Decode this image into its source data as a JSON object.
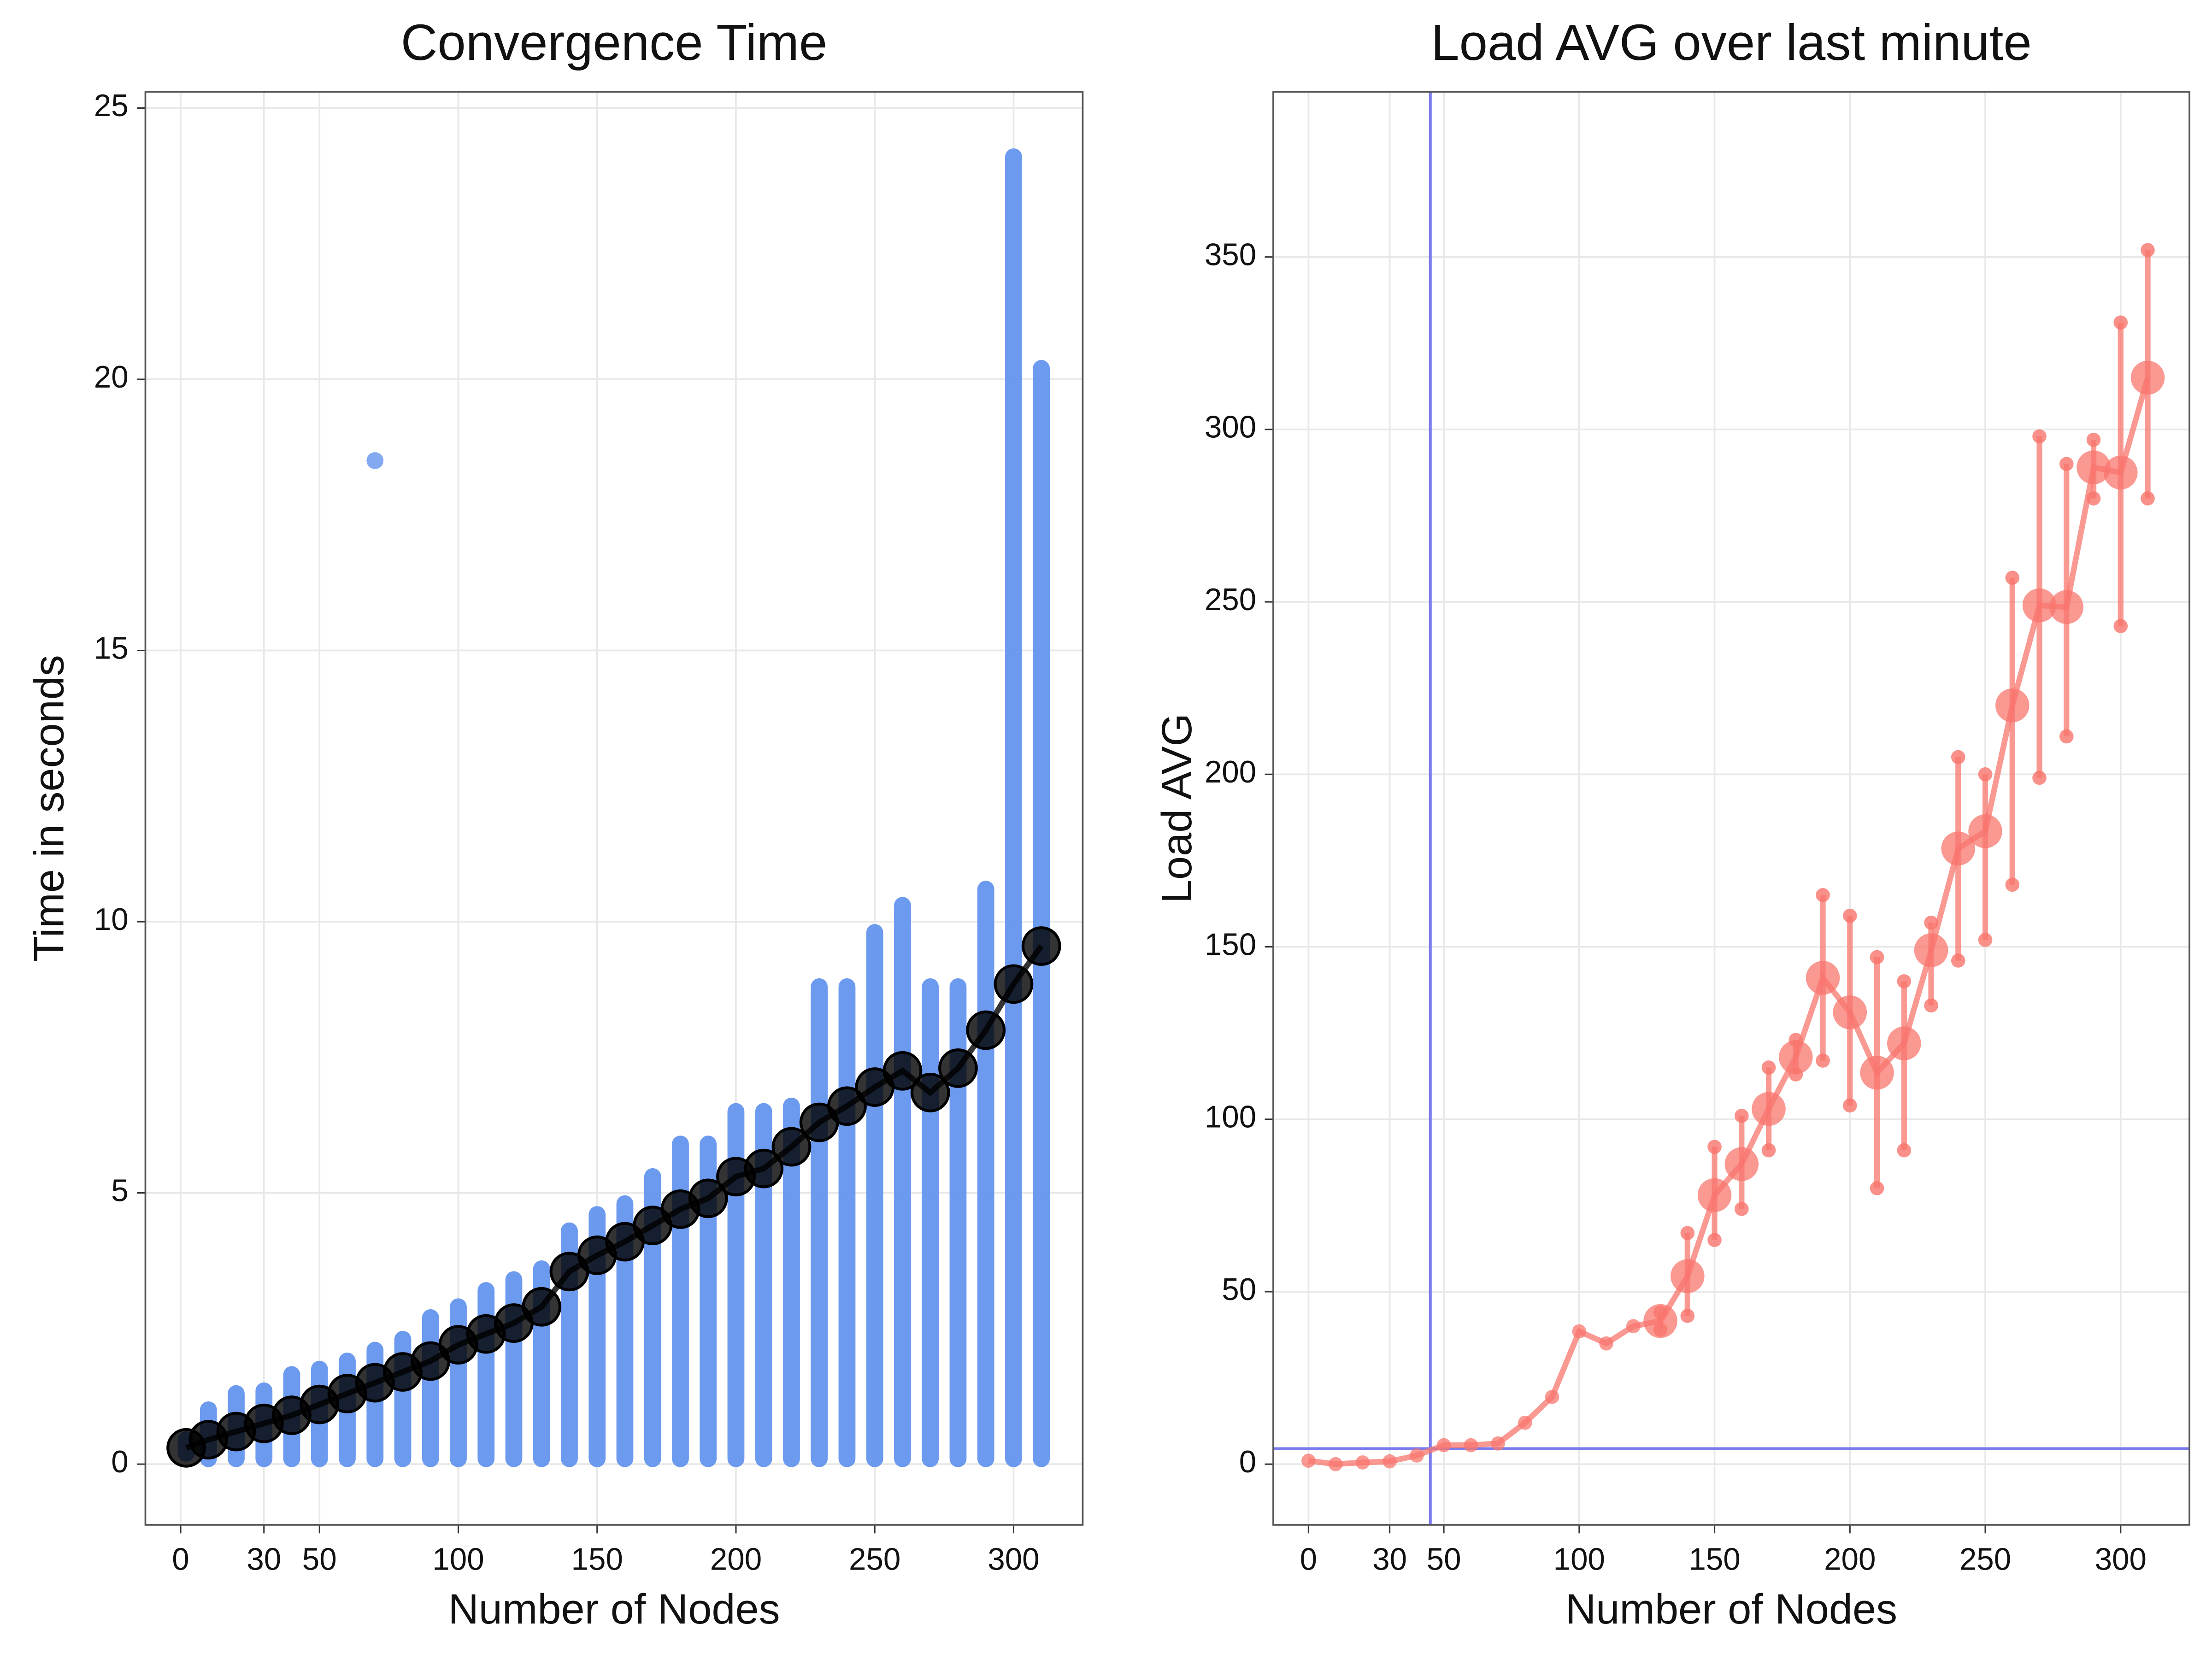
{
  "chart_data": [
    {
      "type": "strip",
      "title": "Convergence Time",
      "xlabel": "Number of Nodes",
      "ylabel": "Time in seconds",
      "x": [
        2,
        10,
        20,
        30,
        40,
        50,
        60,
        70,
        80,
        90,
        100,
        110,
        120,
        130,
        140,
        150,
        160,
        170,
        180,
        190,
        200,
        210,
        220,
        230,
        240,
        250,
        260,
        270,
        280,
        290,
        300,
        310
      ],
      "low": [
        0.2,
        0.1,
        0.1,
        0.1,
        0.1,
        0.1,
        0.1,
        0.1,
        0.1,
        0.1,
        0.1,
        0.1,
        0.1,
        0.1,
        0.1,
        0.1,
        0.1,
        0.1,
        0.1,
        0.1,
        0.1,
        0.1,
        0.1,
        0.1,
        0.1,
        0.1,
        0.1,
        0.1,
        0.1,
        0.1,
        0.1,
        0.1
      ],
      "high": [
        0.45,
        1.0,
        1.3,
        1.35,
        1.65,
        1.75,
        1.9,
        2.1,
        2.3,
        2.7,
        2.9,
        3.2,
        3.4,
        3.6,
        4.3,
        4.6,
        4.8,
        5.3,
        5.9,
        5.9,
        6.5,
        6.5,
        6.6,
        8.8,
        8.8,
        9.8,
        10.3,
        8.8,
        8.8,
        10.6,
        24.1,
        20.2
      ],
      "mean": [
        0.3,
        0.45,
        0.6,
        0.75,
        0.9,
        1.1,
        1.3,
        1.5,
        1.7,
        1.9,
        2.2,
        2.4,
        2.6,
        2.9,
        3.55,
        3.85,
        4.1,
        4.4,
        4.7,
        4.9,
        5.3,
        5.45,
        5.85,
        6.3,
        6.6,
        6.95,
        7.25,
        6.85,
        7.3,
        8.0,
        8.85,
        9.55
      ],
      "outlier_x": [
        70
      ],
      "outlier_y": [
        18.5
      ],
      "color": "#6495ed",
      "mean_color": "#000000",
      "xlim": [
        -12.7,
        324.9
      ],
      "ylim": [
        -1.12,
        25.3
      ],
      "xticks": [
        0,
        30,
        50,
        100,
        150,
        200,
        250,
        300
      ],
      "yticks": [
        0,
        5,
        10,
        15,
        20,
        25
      ],
      "grid": true
    },
    {
      "type": "errorline",
      "title": "Load AVG over last minute",
      "xlabel": "Number of Nodes",
      "ylabel": "Load AVG",
      "x": [
        0,
        10,
        20,
        30,
        40,
        50,
        60,
        70,
        80,
        90,
        100,
        110,
        120,
        130,
        140,
        150,
        160,
        170,
        180,
        190,
        200,
        210,
        220,
        230,
        240,
        250,
        260,
        270,
        280,
        290,
        300,
        310
      ],
      "values": [
        1,
        0,
        0.5,
        0.8,
        2.5,
        5.5,
        5.5,
        6,
        12,
        19.5,
        38.5,
        35,
        40,
        41.5,
        54.5,
        78,
        87,
        103,
        118,
        141,
        131,
        113.5,
        122,
        149,
        178.5,
        183.5,
        220,
        249,
        248.5,
        289,
        287.5,
        315
      ],
      "lower": [
        null,
        null,
        null,
        null,
        null,
        null,
        null,
        null,
        null,
        null,
        null,
        null,
        null,
        39,
        43,
        65,
        74,
        91,
        113,
        117,
        104,
        80,
        91,
        133,
        146,
        152,
        168,
        199,
        211,
        280,
        243,
        280
      ],
      "upper": [
        null,
        null,
        null,
        null,
        null,
        null,
        null,
        null,
        null,
        null,
        null,
        null,
        null,
        44,
        67,
        92,
        101,
        115,
        123,
        165,
        159,
        147,
        140,
        157,
        205,
        200,
        257,
        298,
        290,
        297,
        331,
        352
      ],
      "hline": 4.5,
      "vline": 45,
      "color": "#f8766d",
      "ref_color": "#7b7bee",
      "xlim": [
        -13,
        325.4
      ],
      "ylim": [
        -17.6,
        397.9
      ],
      "xticks": [
        0,
        30,
        50,
        100,
        150,
        200,
        250,
        300
      ],
      "yticks": [
        0,
        50,
        100,
        150,
        200,
        250,
        300,
        350
      ],
      "grid": true
    }
  ]
}
